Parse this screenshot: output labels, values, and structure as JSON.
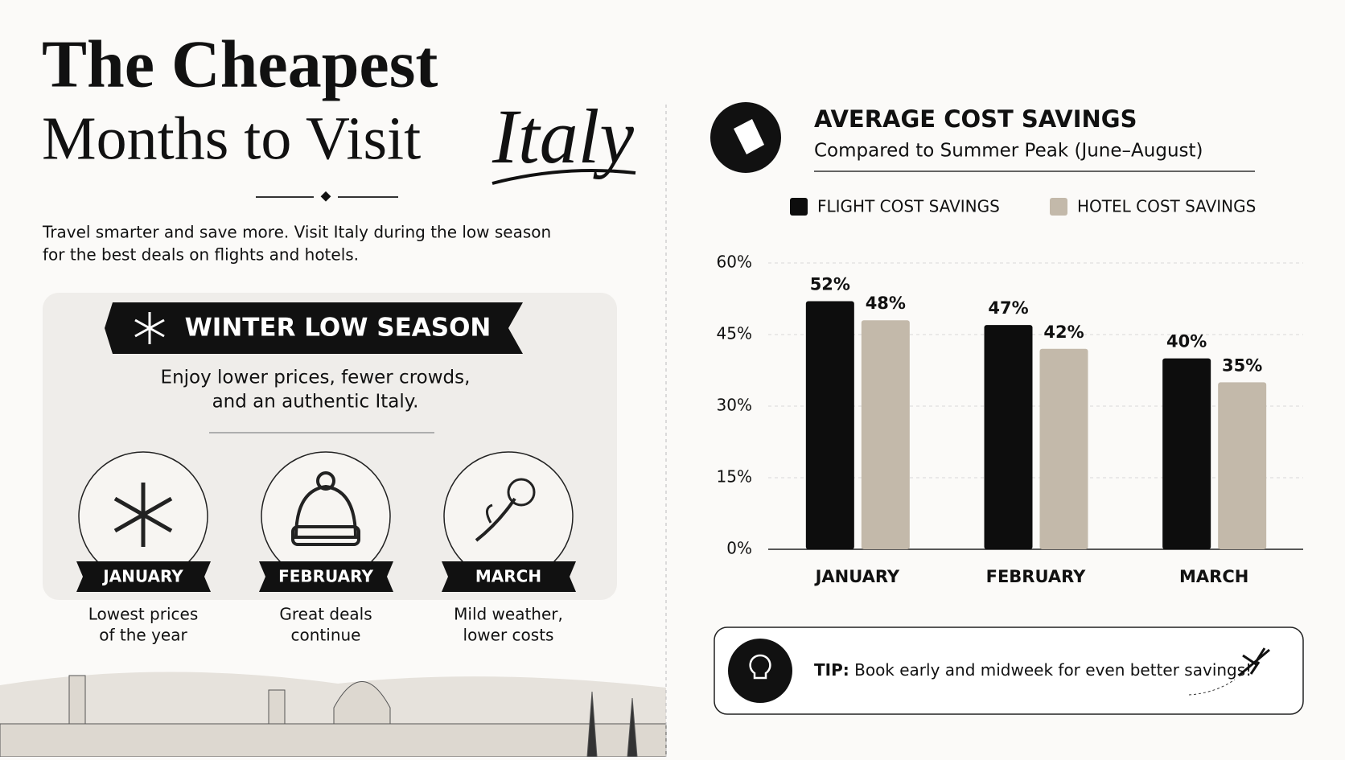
{
  "header": {
    "title_line1": "The Cheapest",
    "title_line2": "Months to Visit",
    "title_script": "Italy",
    "intro_line1": "Travel smarter and save more. Visit Italy during the low season",
    "intro_line2": "for the best deals on flights and hotels."
  },
  "season": {
    "banner": "WINTER LOW SEASON",
    "text_line1": "Enjoy lower prices, fewer crowds,",
    "text_line2": "and an authentic Italy.",
    "months": [
      {
        "name": "JANUARY",
        "line1": "Lowest prices",
        "line2": "of the year"
      },
      {
        "name": "FEBRUARY",
        "line1": "Great deals",
        "line2": "continue"
      },
      {
        "name": "MARCH",
        "line1": "Mild weather,",
        "line2": "lower costs"
      }
    ]
  },
  "chart_data": {
    "type": "bar",
    "title": "AVERAGE COST SAVINGS",
    "subtitle": "Compared to Summer Peak (June–August)",
    "categories": [
      "JANUARY",
      "FEBRUARY",
      "MARCH"
    ],
    "series": [
      {
        "name": "FLIGHT COST SAVINGS",
        "color": "#0d0d0d",
        "values": [
          52,
          47,
          40
        ],
        "value_labels": [
          "52%",
          "47%",
          "40%"
        ]
      },
      {
        "name": "HOTEL COST SAVINGS",
        "color": "#c3b9aa",
        "values": [
          48,
          42,
          35
        ],
        "value_labels": [
          "48%",
          "42%",
          "35%"
        ]
      }
    ],
    "ylim": [
      0,
      60
    ],
    "yticks": [
      {
        "value": 0,
        "label": "0%"
      },
      {
        "value": 15,
        "label": "15%"
      },
      {
        "value": 30,
        "label": "30%"
      },
      {
        "value": 45,
        "label": "45%"
      },
      {
        "value": 60,
        "label": "60%"
      }
    ],
    "grid": true,
    "legend": "top"
  },
  "tip": {
    "label": "TIP:",
    "text": "Book early and midweek for even better savings!"
  }
}
